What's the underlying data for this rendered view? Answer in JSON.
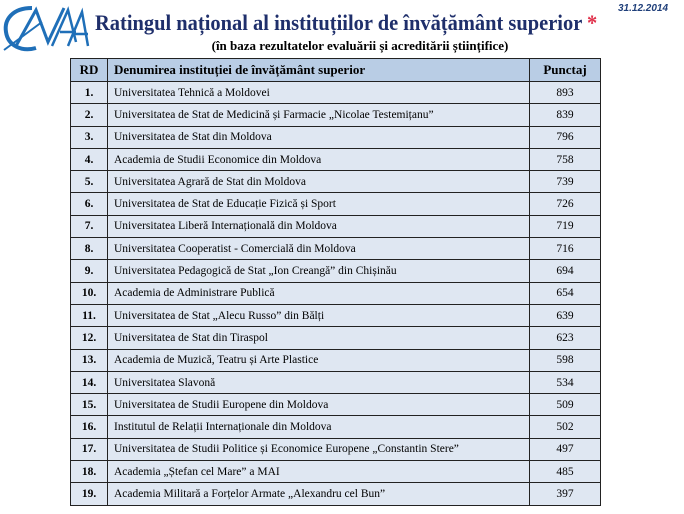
{
  "header": {
    "date": "31.12.2014",
    "title": "Ratingul național al instituțiilor de învățământ superior",
    "title_mark": "*",
    "subtitle": "(în baza rezultatelor evaluării  și acreditării științifice)",
    "logo_text": "CNAA"
  },
  "table": {
    "columns": [
      "RD",
      "Denumirea instituției de învățământ superior",
      "Punctaj"
    ],
    "rows": [
      [
        "1.",
        "Universitatea Tehnică a Moldovei",
        "893"
      ],
      [
        "2.",
        "Universitatea de Stat de Medicină și Farmacie „Nicolae Testemițanu”",
        "839"
      ],
      [
        "3.",
        "Universitatea de Stat din Moldova",
        "796"
      ],
      [
        "4.",
        "Academia de Studii Economice din Moldova",
        "758"
      ],
      [
        "5.",
        "Universitatea Agrară de Stat din Moldova",
        "739"
      ],
      [
        "6.",
        "Universitatea de Stat de Educație Fizică și Sport",
        "726"
      ],
      [
        "7.",
        "Universitatea Liberă Internațională din Moldova",
        "719"
      ],
      [
        "8.",
        "Universitatea Cooperatist - Comercială din Moldova",
        "716"
      ],
      [
        "9.",
        "Universitatea Pedagogică de Stat „Ion Creangă” din Chișinău",
        "694"
      ],
      [
        "10.",
        "Academia de Administrare Publică",
        "654"
      ],
      [
        "11.",
        "Universitatea de Stat „Alecu Russo” din Bălți",
        "639"
      ],
      [
        "12.",
        "Universitatea de Stat din Tiraspol",
        "623"
      ],
      [
        "13.",
        "Academia de Muzică, Teatru și Arte Plastice",
        "598"
      ],
      [
        "14.",
        "Universitatea Slavonă",
        "534"
      ],
      [
        "15.",
        "Universitatea de Studii Europene din Moldova",
        "509"
      ],
      [
        "16.",
        "Institutul de Relații Internaționale din Moldova",
        "502"
      ],
      [
        "17.",
        "Universitatea de Studii Politice și Economice Europene „Constantin Stere”",
        "497"
      ],
      [
        "18.",
        "Academia „Ștefan cel Mare” a MAI",
        "485"
      ],
      [
        "19.",
        "Academia Militară a Forțelor Armate „Alexandru cel Bun”",
        "397"
      ]
    ]
  }
}
